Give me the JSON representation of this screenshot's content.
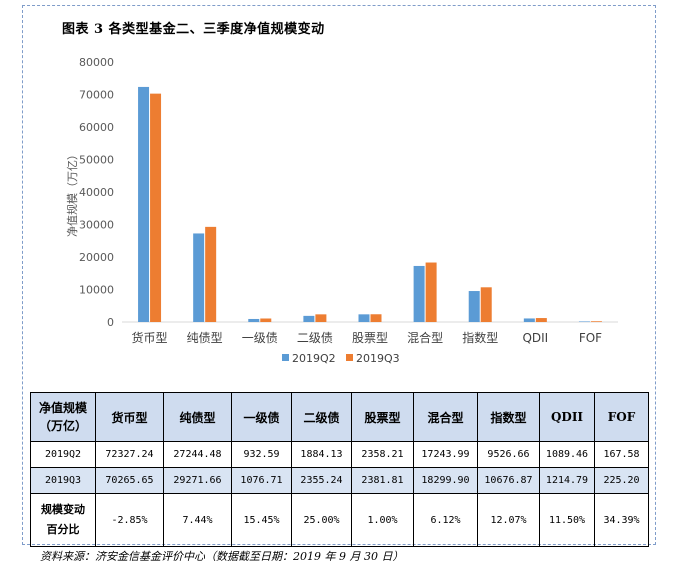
{
  "figure_title": "图表 3 各类型基金二、三季度净值规模变动",
  "chart_data": {
    "type": "bar",
    "categories": [
      "货币型",
      "纯债型",
      "一级债",
      "二级债",
      "股票型",
      "混合型",
      "指数型",
      "QDII",
      "FOF"
    ],
    "series": [
      {
        "name": "2019Q2",
        "color": "#5b9bd5",
        "values": [
          72327.24,
          27244.48,
          932.59,
          1884.13,
          2358.21,
          17243.99,
          9526.66,
          1089.46,
          167.58
        ]
      },
      {
        "name": "2019Q3",
        "color": "#ed7d31",
        "values": [
          70265.65,
          29271.66,
          1076.71,
          2355.24,
          2381.81,
          18299.9,
          10676.87,
          1214.79,
          225.2
        ]
      }
    ],
    "ylabel": "净值规模（万亿）",
    "ylim": [
      0,
      80000
    ],
    "yticks": [
      "0",
      "10000",
      "20000",
      "30000",
      "40000",
      "50000",
      "60000",
      "70000",
      "80000"
    ],
    "grid": false,
    "legend": "bottom"
  },
  "table": {
    "header": [
      "净值规模（万亿）",
      "货币型",
      "纯债型",
      "一级债",
      "二级债",
      "股票型",
      "混合型",
      "指数型",
      "QDII",
      "FOF"
    ],
    "header_line1": "净值规模",
    "header_line2": "（万亿）",
    "rows": [
      {
        "label": "2019Q2",
        "cells": [
          "72327.24",
          "27244.48",
          "932.59",
          "1884.13",
          "2358.21",
          "17243.99",
          "9526.66",
          "1089.46",
          "167.58"
        ]
      },
      {
        "label": "2019Q3",
        "cells": [
          "70265.65",
          "29271.66",
          "1076.71",
          "2355.24",
          "2381.81",
          "18299.90",
          "10676.87",
          "1214.79",
          "225.20"
        ]
      },
      {
        "label_line1": "规模变动",
        "label_line2": "百分比",
        "cells": [
          "-2.85%",
          "7.44%",
          "15.45%",
          "25.00%",
          "1.00%",
          "6.12%",
          "12.07%",
          "11.50%",
          "34.39%"
        ]
      }
    ]
  },
  "source": "资料来源：济安金信基金评价中心（数据截至日期：2019 年 9 月 30 日）"
}
